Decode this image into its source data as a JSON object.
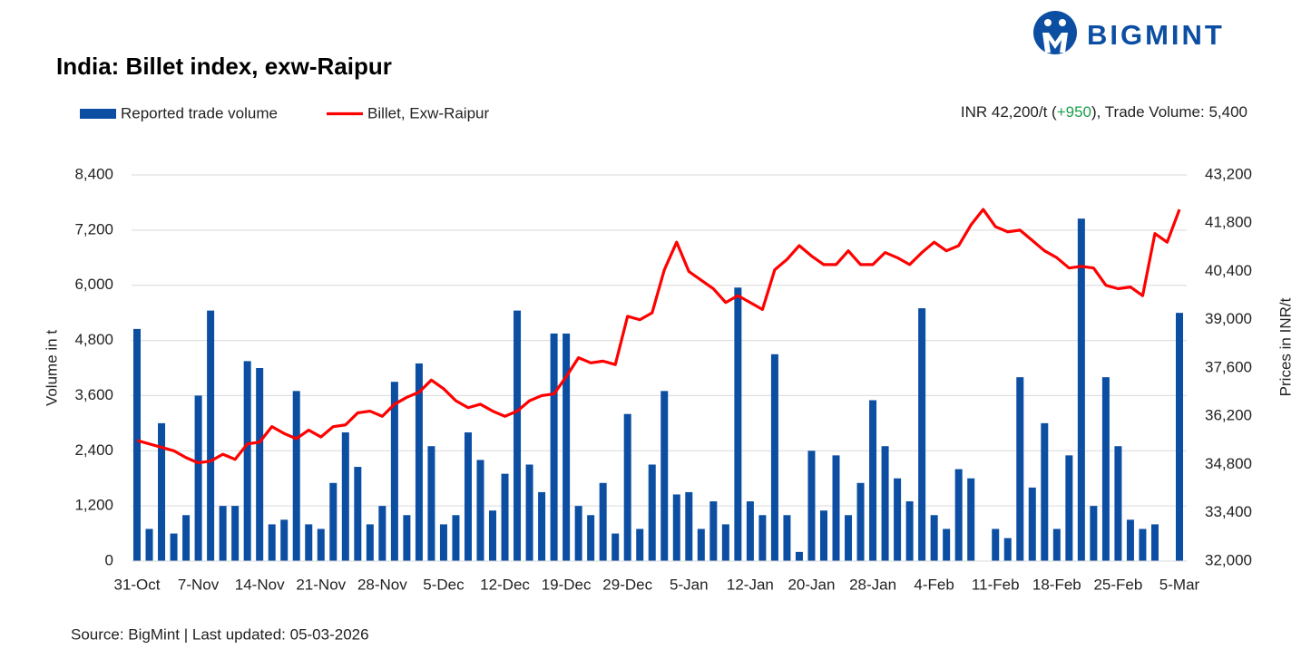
{
  "chart_data": {
    "type": "combo",
    "title": "India: Billet index, exw-Raipur",
    "logo": "BIGMINT",
    "headline": {
      "price": "INR 42,200/t (",
      "change": "+950",
      "rest": "), Trade Volume: 5,400"
    },
    "source": "Source: BigMint | Last updated: 05-03-2026",
    "y_label": "Volume in t",
    "y2_label": "Prices in INR/t",
    "categories": [
      "31-Oct",
      null,
      null,
      null,
      null,
      "7-Nov",
      null,
      null,
      null,
      null,
      "14-Nov",
      null,
      null,
      null,
      null,
      "21-Nov",
      null,
      null,
      null,
      null,
      "28-Nov",
      null,
      null,
      null,
      null,
      "5-Dec",
      null,
      null,
      null,
      null,
      "12-Dec",
      null,
      null,
      null,
      null,
      "19-Dec",
      null,
      null,
      null,
      null,
      "29-Dec",
      null,
      null,
      null,
      null,
      "5-Jan",
      null,
      null,
      null,
      null,
      "12-Jan",
      null,
      null,
      null,
      null,
      "20-Jan",
      null,
      null,
      null,
      null,
      "28-Jan",
      null,
      null,
      null,
      null,
      "4-Feb",
      null,
      null,
      null,
      null,
      "11-Feb",
      null,
      null,
      null,
      null,
      "18-Feb",
      null,
      null,
      null,
      null,
      "25-Feb",
      null,
      null,
      null,
      null,
      "5-Mar"
    ],
    "series": [
      {
        "name": "Reported trade volume",
        "type": "bar",
        "axis": "y",
        "color": "#0b4ea2",
        "values": [
          5050,
          700,
          3000,
          600,
          1000,
          3600,
          5450,
          1200,
          1200,
          4350,
          4200,
          800,
          900,
          3700,
          800,
          700,
          1700,
          2800,
          2050,
          800,
          1200,
          3900,
          1000,
          4300,
          2500,
          800,
          1000,
          2800,
          2200,
          1100,
          1900,
          5450,
          2100,
          1500,
          4950,
          4950,
          1200,
          1000,
          1700,
          600,
          3200,
          700,
          2100,
          3700,
          1450,
          1500,
          700,
          1300,
          800,
          5950,
          1300,
          1000,
          4500,
          1000,
          200,
          2400,
          1100,
          2300,
          1000,
          1700,
          3500,
          2500,
          1800,
          1300,
          5500,
          1000,
          700,
          2000,
          1800,
          null,
          700,
          500,
          4000,
          1600,
          3000,
          700,
          2300,
          7450,
          1200,
          4000,
          2500,
          900,
          700,
          800,
          null,
          5400
        ]
      },
      {
        "name": "Billet, Exw-Raipur",
        "type": "line",
        "axis": "y2",
        "color": "#ff0000",
        "values": [
          35500,
          35400,
          35300,
          35200,
          35000,
          34850,
          34900,
          35100,
          34950,
          35400,
          35450,
          35900,
          35700,
          35550,
          35800,
          35600,
          35900,
          35950,
          36300,
          36350,
          36200,
          36550,
          36750,
          36900,
          37250,
          37000,
          36650,
          36450,
          36550,
          36350,
          36200,
          36350,
          36650,
          36800,
          36850,
          37350,
          37900,
          37750,
          37800,
          37700,
          39100,
          39000,
          39200,
          40450,
          41250,
          40400,
          40150,
          39900,
          39500,
          39700,
          39500,
          39300,
          40450,
          40750,
          41150,
          40850,
          40600,
          40600,
          41000,
          40600,
          40600,
          40950,
          40800,
          40600,
          40950,
          41250,
          41000,
          41150,
          41750,
          42200,
          41700,
          41550,
          41600,
          41300,
          41000,
          40800,
          40500,
          40550,
          40500,
          40000,
          39900,
          39950,
          39700,
          41500,
          41250,
          42200
        ]
      }
    ],
    "ylim": [
      0,
      8400
    ],
    "yticks": [
      0,
      {
        "value": 1200,
        "label": "1,200"
      },
      {
        "value": 2400,
        "label": "2,400"
      },
      {
        "value": 3600,
        "label": "3,600"
      },
      {
        "value": 4800,
        "label": "4,800"
      },
      {
        "value": 6000,
        "label": "6,000"
      },
      {
        "value": 7200,
        "label": "7,200"
      },
      {
        "value": 8400,
        "label": "8,400"
      }
    ],
    "y2lim": [
      32000,
      43200
    ],
    "y2ticks": [
      {
        "value": 32000,
        "label": "32,000"
      },
      {
        "value": 33400,
        "label": "33,400"
      },
      {
        "value": 34800,
        "label": "34,800"
      },
      {
        "value": 36200,
        "label": "36,200"
      },
      {
        "value": 37600,
        "label": "37,600"
      },
      {
        "value": 39000,
        "label": "39,000"
      },
      {
        "value": 40400,
        "label": "40,400"
      },
      {
        "value": 41800,
        "label": "41,800"
      },
      {
        "value": 43200,
        "label": "43,200"
      }
    ],
    "grid": true
  }
}
